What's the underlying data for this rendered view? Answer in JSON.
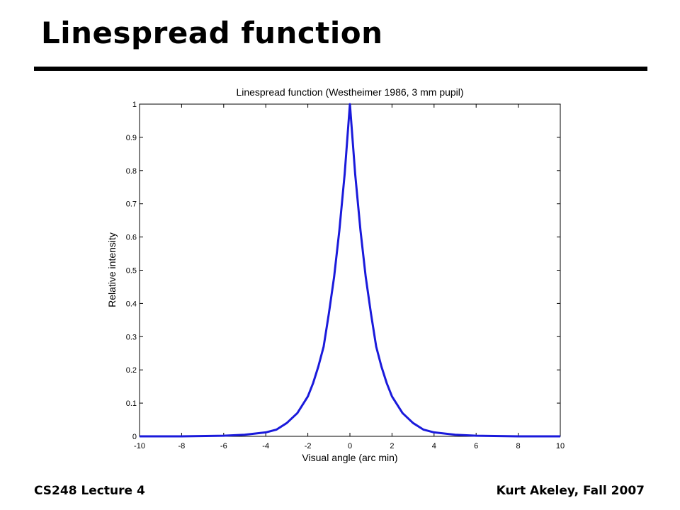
{
  "slide": {
    "title": "Linespread function",
    "footer_left": "CS248 Lecture 4",
    "footer_right": "Kurt Akeley, Fall 2007"
  },
  "chart_data": {
    "type": "line",
    "title": "Linespread function (Westheimer 1986, 3 mm pupil)",
    "xlabel": "Visual angle (arc min)",
    "ylabel": "Relative intensity",
    "xlim": [
      -10,
      10
    ],
    "ylim": [
      0,
      1
    ],
    "xticks": [
      -10,
      -8,
      -6,
      -4,
      -2,
      0,
      2,
      4,
      6,
      8,
      10
    ],
    "xtick_labels": [
      "-10",
      "-8",
      "-6",
      "-4",
      "-2",
      "0",
      "2",
      "4",
      "6",
      "8",
      "10"
    ],
    "yticks": [
      0,
      0.1,
      0.2,
      0.3,
      0.4,
      0.5,
      0.6,
      0.7,
      0.8,
      0.9,
      1
    ],
    "ytick_labels": [
      "0",
      "0.1",
      "0.2",
      "0.3",
      "0.4",
      "0.5",
      "0.6",
      "0.7",
      "0.8",
      "0.9",
      "1"
    ],
    "grid": false,
    "series": [
      {
        "color": "#1a1adb",
        "x": [
          -10,
          -8,
          -6,
          -5,
          -4,
          -3.5,
          -3,
          -2.5,
          -2,
          -1.75,
          -1.5,
          -1.25,
          -1,
          -0.75,
          -0.5,
          -0.25,
          0,
          0.25,
          0.5,
          0.75,
          1,
          1.25,
          1.5,
          1.75,
          2,
          2.5,
          3,
          3.5,
          4,
          5,
          6,
          8,
          10
        ],
        "y": [
          0.0,
          0.0,
          0.002,
          0.005,
          0.012,
          0.02,
          0.04,
          0.07,
          0.12,
          0.16,
          0.21,
          0.27,
          0.37,
          0.48,
          0.62,
          0.79,
          1.0,
          0.79,
          0.62,
          0.48,
          0.37,
          0.27,
          0.21,
          0.16,
          0.12,
          0.07,
          0.04,
          0.02,
          0.012,
          0.005,
          0.002,
          0.0,
          0.0
        ]
      }
    ]
  }
}
